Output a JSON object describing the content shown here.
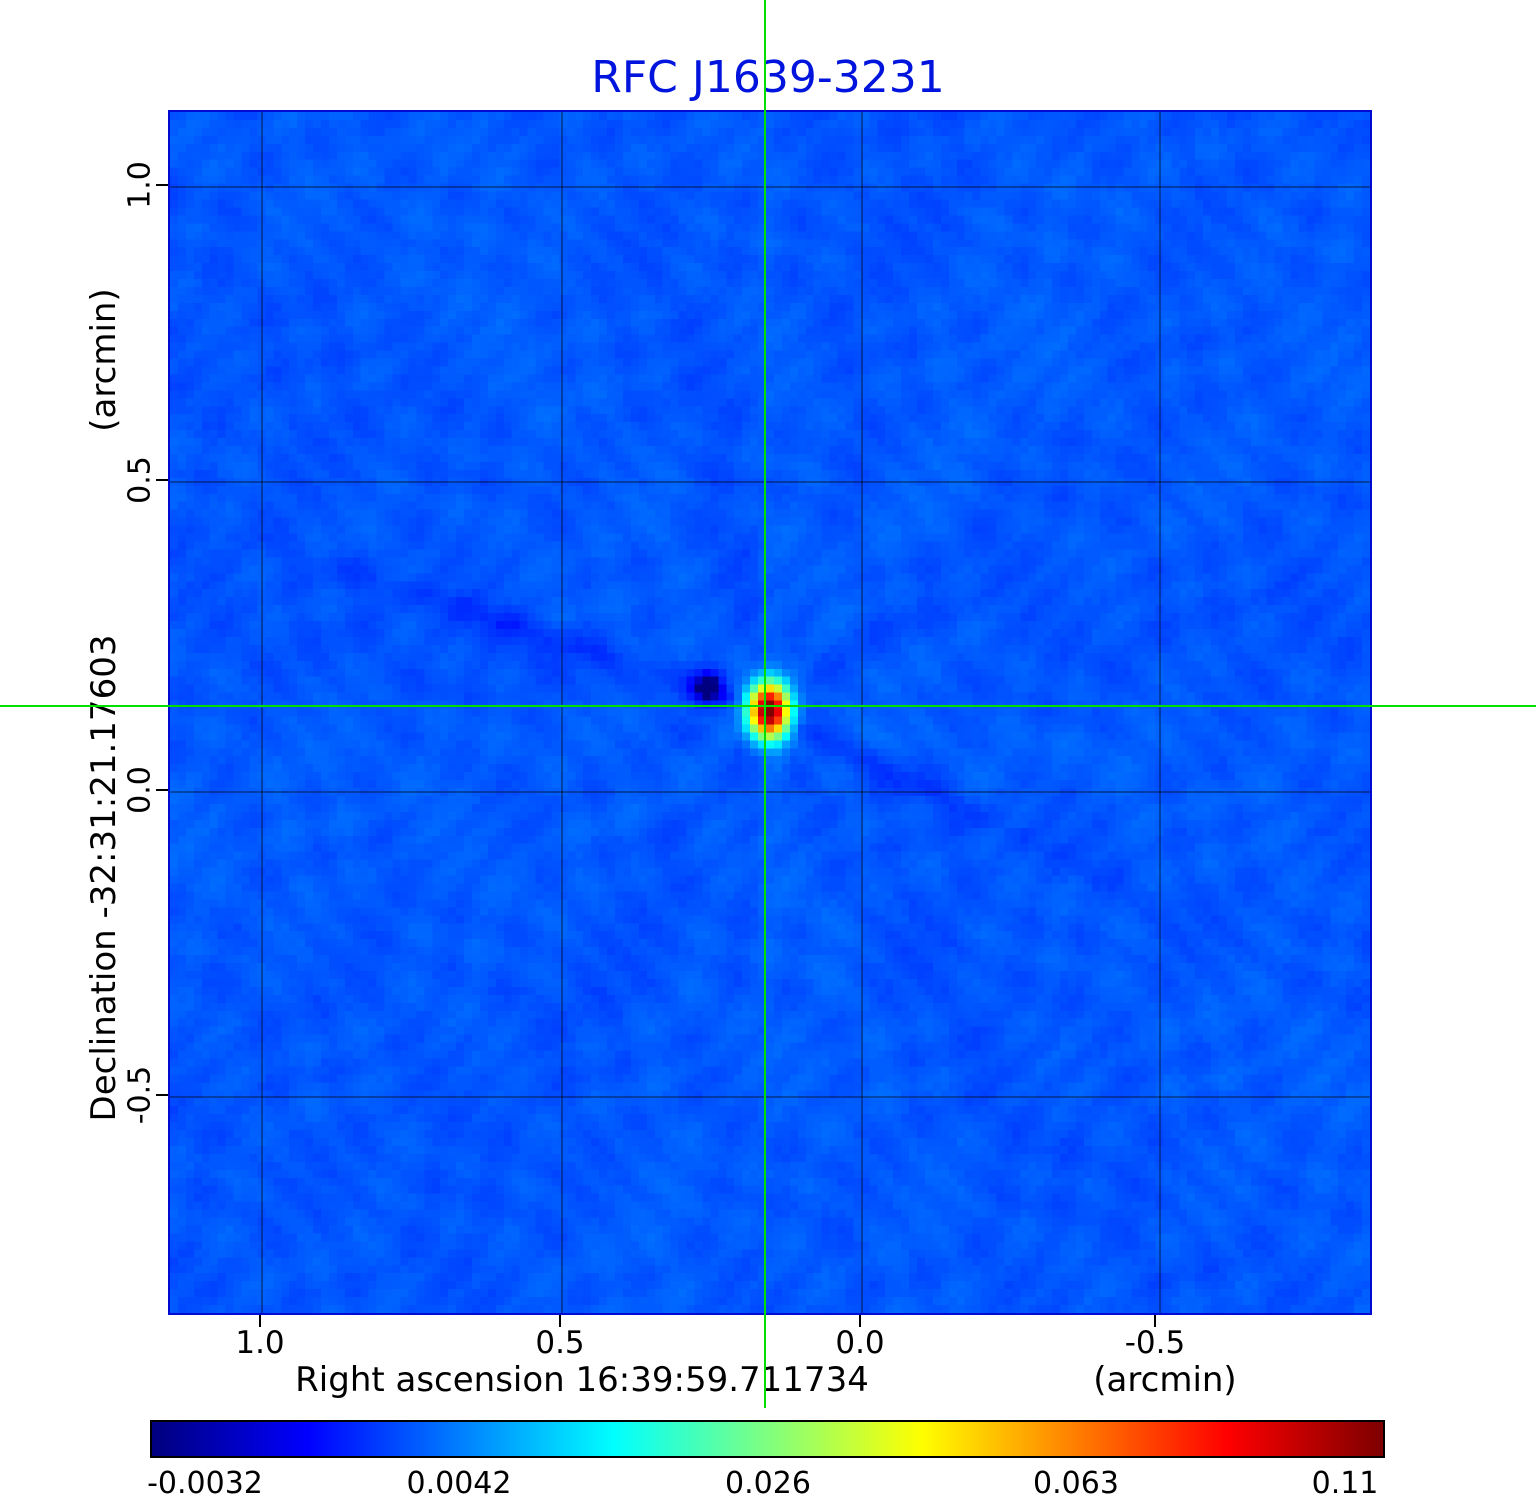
{
  "chart_data": {
    "type": "heatmap",
    "title": "RFC J1639-3231",
    "title_color": "#0014dd",
    "x_axis": {
      "label": "Right ascension  16:39:59.711734",
      "unit": "(arcmin)",
      "ticks": [
        "1.0",
        "0.5",
        "0.0",
        "-0.5"
      ],
      "range": [
        1.15,
        -0.85
      ]
    },
    "y_axis": {
      "label": "Declination  -32:31:21.17603",
      "unit": "(arcmin)",
      "ticks": [
        "1.0",
        "0.5",
        "0.0",
        "-0.5"
      ],
      "range": [
        -0.89,
        1.15
      ]
    },
    "colorbar": {
      "colormap": "jet",
      "scale": "sqrt",
      "vmin": -0.0032,
      "vmax": 0.11,
      "ticks": [
        "-0.0032",
        "0.0042",
        "0.026",
        "0.063",
        "0.11"
      ]
    },
    "crosshair": {
      "color": "#00e000",
      "x_frac": 0.496,
      "y_frac": 0.495,
      "ra_offset_arcmin": 0.16,
      "dec_offset_arcmin": 0.13
    },
    "source": {
      "peak_value": 0.11,
      "description": "compact bright source at crosshair with negative sidelobe and radial dirty-beam streaks"
    },
    "grid": true
  }
}
